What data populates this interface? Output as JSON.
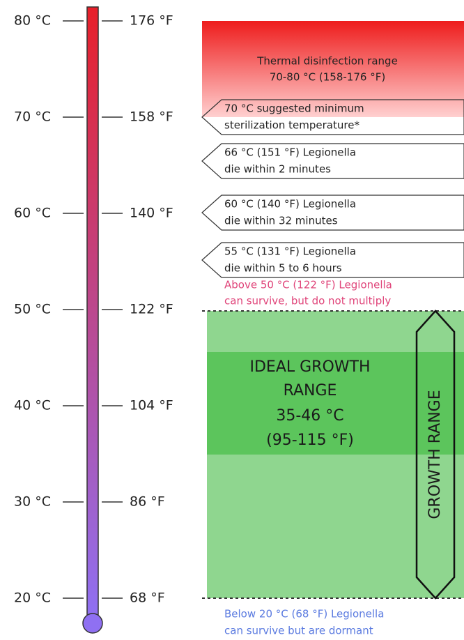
{
  "scale": [
    {
      "celsius": "80 °C",
      "fahrenheit": "176 °F"
    },
    {
      "celsius": "70 °C",
      "fahrenheit": "158 °F"
    },
    {
      "celsius": "60 °C",
      "fahrenheit": "140 °F"
    },
    {
      "celsius": "50 °C",
      "fahrenheit": "122 °F"
    },
    {
      "celsius": "40 °C",
      "fahrenheit": "104 °F"
    },
    {
      "celsius": "30 °C",
      "fahrenheit": "86 °F"
    },
    {
      "celsius": "20 °C",
      "fahrenheit": "68 °F"
    }
  ],
  "disinfection": {
    "lines": [
      "Thermal disinfection range",
      "70-80 °C (158-176 °F)"
    ]
  },
  "callouts": [
    {
      "lines": [
        "70 °C suggested minimum",
        "sterilization temperature*"
      ]
    },
    {
      "lines": [
        "66 °C (151 °F) Legionella",
        "die within 2 minutes"
      ]
    },
    {
      "lines": [
        "60 °C (140 °F) Legionella",
        "die within 32 minutes"
      ]
    },
    {
      "lines": [
        "55 °C (131 °F) Legionella",
        "die within 5 to 6 hours"
      ]
    }
  ],
  "above_note": {
    "lines": [
      "Above 50 °C (122 °F) Legionella",
      "can survive, but do not multiply"
    ]
  },
  "ideal_growth": {
    "lines": [
      "IDEAL GROWTH",
      "RANGE",
      "35-46 °C",
      "(95-115 °F)"
    ]
  },
  "growth_range": "GROWTH RANGE",
  "below_note": {
    "lines": [
      "Below 20 °C (68 °F) Legionella",
      "can survive but are dormant"
    ]
  }
}
